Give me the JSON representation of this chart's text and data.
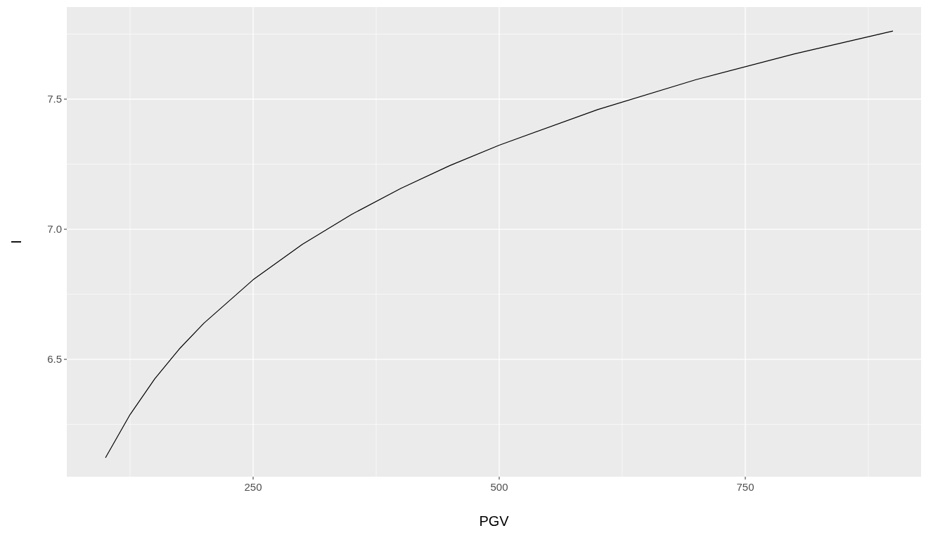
{
  "chart_data": {
    "type": "line",
    "xlabel": "PGV",
    "ylabel": "I",
    "x": [
      100,
      125,
      150,
      175,
      200,
      250,
      300,
      350,
      400,
      450,
      500,
      600,
      700,
      800,
      900
    ],
    "series": [
      {
        "color": "#000000",
        "values": [
          6.122,
          6.288,
          6.425,
          6.54,
          6.639,
          6.806,
          6.942,
          7.057,
          7.157,
          7.245,
          7.323,
          7.46,
          7.575,
          7.674,
          7.762
        ]
      }
    ],
    "xlim": [
      60.7,
      928.6
    ],
    "xticks": [
      250,
      500,
      750
    ],
    "ylim": [
      6.049,
      7.854
    ],
    "yticks": [
      6.5,
      {
        "value": 7.0,
        "label": "7.0"
      },
      7.5
    ],
    "grid": true,
    "marker": "none",
    "line_style": "solid"
  }
}
